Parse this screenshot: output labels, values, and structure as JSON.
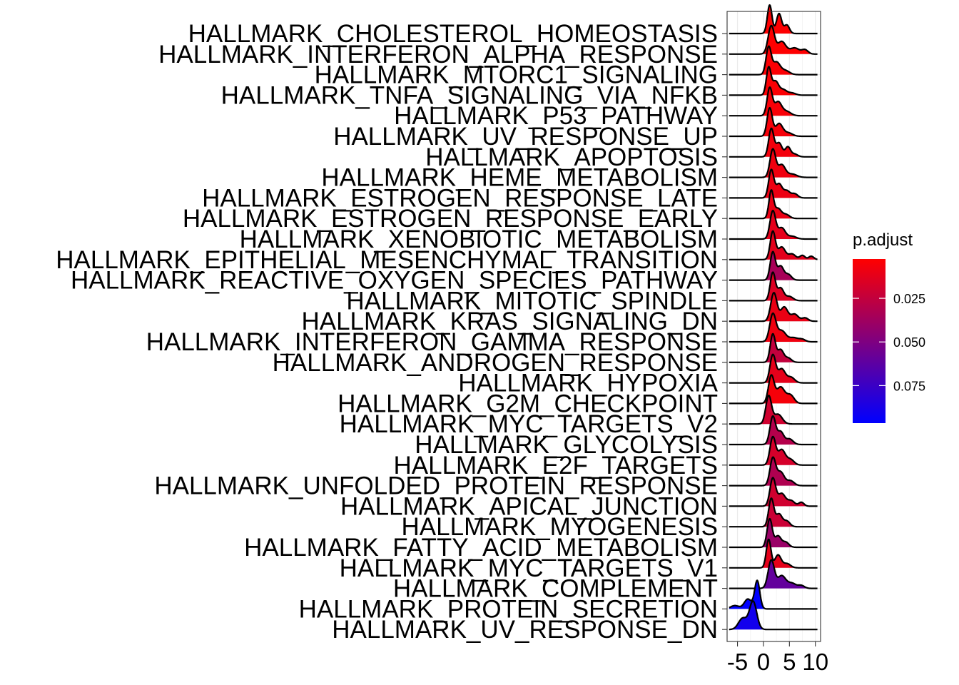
{
  "chart_data": {
    "type": "ridgeline",
    "xlim": [
      -7,
      11
    ],
    "x_ticks": [
      -5,
      0,
      5,
      10
    ],
    "x_tick_labels": [
      "-5",
      "0",
      "5",
      "10"
    ],
    "x_minor_ticks": [
      -2.5,
      2.5,
      7.5
    ],
    "grid": true,
    "legend": {
      "title": "p.adjust",
      "position": "right",
      "range": [
        0.0025,
        0.0965
      ],
      "ticks": [
        0.025,
        0.05,
        0.075
      ],
      "tick_labels": [
        "0.025",
        "0.050",
        "0.075"
      ],
      "colors": [
        "#FF0000",
        "#0000FF"
      ]
    },
    "series": [
      {
        "name": "HALLMARK_CHOLESTEROL_HOMEOSTASIS",
        "p_adjust": 0.003,
        "peaks": [
          [
            1.2,
            1.0,
            0.45
          ],
          [
            3.0,
            0.7,
            0.5
          ],
          [
            4.5,
            0.3,
            0.5
          ]
        ]
      },
      {
        "name": "HALLMARK_INTERFERON_ALPHA_RESPONSE",
        "p_adjust": 0.003,
        "peaks": [
          [
            1.5,
            1.0,
            0.6
          ],
          [
            3.5,
            0.45,
            0.8
          ],
          [
            6.0,
            0.22,
            0.9
          ],
          [
            8.0,
            0.15,
            0.6
          ]
        ]
      },
      {
        "name": "HALLMARK_MTORC1_SIGNALING",
        "p_adjust": 0.004,
        "peaks": [
          [
            1.0,
            1.0,
            0.5
          ],
          [
            2.5,
            0.45,
            0.7
          ],
          [
            4.2,
            0.15,
            0.8
          ]
        ]
      },
      {
        "name": "HALLMARK_TNFA_SIGNALING_VIA_NFKB",
        "p_adjust": 0.004,
        "peaks": [
          [
            1.0,
            1.0,
            0.45
          ],
          [
            2.3,
            0.5,
            0.6
          ],
          [
            3.8,
            0.2,
            0.7
          ],
          [
            5.5,
            0.08,
            0.7
          ]
        ]
      },
      {
        "name": "HALLMARK_P53_PATHWAY",
        "p_adjust": 0.005,
        "peaks": [
          [
            1.2,
            1.0,
            0.5
          ],
          [
            2.8,
            0.5,
            0.7
          ],
          [
            4.5,
            0.15,
            0.8
          ]
        ]
      },
      {
        "name": "HALLMARK_UV_RESPONSE_UP",
        "p_adjust": 0.006,
        "peaks": [
          [
            1.2,
            1.0,
            0.5
          ],
          [
            3.0,
            0.45,
            0.7
          ],
          [
            4.8,
            0.12,
            0.8
          ]
        ]
      },
      {
        "name": "HALLMARK_APOPTOSIS",
        "p_adjust": 0.007,
        "peaks": [
          [
            1.5,
            1.0,
            0.5
          ],
          [
            3.0,
            0.5,
            0.6
          ],
          [
            4.7,
            0.35,
            0.5
          ],
          [
            6.0,
            0.1,
            0.6
          ]
        ]
      },
      {
        "name": "HALLMARK_HEME_METABOLISM",
        "p_adjust": 0.008,
        "peaks": [
          [
            1.8,
            1.0,
            0.55
          ],
          [
            3.5,
            0.45,
            0.7
          ],
          [
            5.5,
            0.12,
            0.9
          ]
        ]
      },
      {
        "name": "HALLMARK_ESTROGEN_RESPONSE_LATE",
        "p_adjust": 0.009,
        "peaks": [
          [
            1.5,
            1.0,
            0.5
          ],
          [
            3.0,
            0.5,
            0.6
          ],
          [
            4.5,
            0.25,
            0.6
          ],
          [
            6.0,
            0.15,
            0.6
          ]
        ]
      },
      {
        "name": "HALLMARK_ESTROGEN_RESPONSE_EARLY",
        "p_adjust": 0.01,
        "peaks": [
          [
            1.5,
            1.0,
            0.45
          ],
          [
            2.8,
            0.35,
            0.6
          ],
          [
            4.3,
            0.15,
            0.7
          ]
        ]
      },
      {
        "name": "HALLMARK_XENOBIOTIC_METABOLISM",
        "p_adjust": 0.012,
        "peaks": [
          [
            1.8,
            1.0,
            0.55
          ],
          [
            3.5,
            0.4,
            0.7
          ],
          [
            5.5,
            0.1,
            0.8
          ]
        ]
      },
      {
        "name": "HALLMARK_EPITHELIAL_MESENCHYMAL_TRANSITION",
        "p_adjust": 0.013,
        "peaks": [
          [
            1.8,
            1.0,
            0.5
          ],
          [
            3.5,
            0.45,
            0.7
          ],
          [
            5.5,
            0.2,
            0.7
          ],
          [
            7.5,
            0.15,
            0.5
          ],
          [
            9.2,
            0.12,
            0.5
          ]
        ]
      },
      {
        "name": "HALLMARK_REACTIVE_OXYGEN_SPECIES_PATHWAY",
        "p_adjust": 0.035,
        "peaks": [
          [
            1.8,
            1.0,
            0.5
          ],
          [
            3.3,
            0.5,
            0.6
          ],
          [
            4.8,
            0.2,
            0.6
          ]
        ]
      },
      {
        "name": "HALLMARK_MITOTIC_SPINDLE",
        "p_adjust": 0.015,
        "peaks": [
          [
            1.8,
            1.0,
            0.5
          ],
          [
            3.3,
            0.45,
            0.6
          ],
          [
            5.0,
            0.15,
            0.7
          ]
        ]
      },
      {
        "name": "HALLMARK_KRAS_SIGNALING_DN",
        "p_adjust": 0.01,
        "peaks": [
          [
            2.0,
            1.0,
            0.6
          ],
          [
            4.0,
            0.5,
            0.7
          ],
          [
            6.0,
            0.25,
            0.7
          ],
          [
            8.0,
            0.12,
            0.6
          ]
        ]
      },
      {
        "name": "HALLMARK_INTERFERON_GAMMA_RESPONSE",
        "p_adjust": 0.008,
        "peaks": [
          [
            1.8,
            1.0,
            0.6
          ],
          [
            3.5,
            0.4,
            0.8
          ],
          [
            5.8,
            0.15,
            0.9
          ],
          [
            7.5,
            0.08,
            0.6
          ]
        ]
      },
      {
        "name": "HALLMARK_ANDROGEN_RESPONSE",
        "p_adjust": 0.025,
        "peaks": [
          [
            1.8,
            1.0,
            0.5
          ],
          [
            3.3,
            0.45,
            0.6
          ],
          [
            4.8,
            0.15,
            0.6
          ]
        ]
      },
      {
        "name": "HALLMARK_HYPOXIA",
        "p_adjust": 0.012,
        "peaks": [
          [
            1.8,
            1.0,
            0.55
          ],
          [
            3.5,
            0.5,
            0.7
          ],
          [
            5.3,
            0.2,
            0.7
          ]
        ]
      },
      {
        "name": "HALLMARK_G2M_CHECKPOINT",
        "p_adjust": 0.006,
        "peaks": [
          [
            1.5,
            1.0,
            0.55
          ],
          [
            3.3,
            0.6,
            0.8
          ],
          [
            5.2,
            0.3,
            0.7
          ]
        ]
      },
      {
        "name": "HALLMARK_MYC_TARGETS_V2",
        "p_adjust": 0.02,
        "peaks": [
          [
            1.0,
            1.0,
            0.55
          ],
          [
            2.8,
            0.35,
            0.8
          ]
        ]
      },
      {
        "name": "HALLMARK_GLYCOLYSIS",
        "p_adjust": 0.03,
        "peaks": [
          [
            1.8,
            1.0,
            0.55
          ],
          [
            3.3,
            0.45,
            0.6
          ],
          [
            5.0,
            0.2,
            0.7
          ]
        ]
      },
      {
        "name": "HALLMARK_E2F_TARGETS",
        "p_adjust": 0.018,
        "peaks": [
          [
            1.8,
            1.0,
            0.55
          ],
          [
            3.5,
            0.55,
            0.7
          ],
          [
            5.2,
            0.2,
            0.7
          ]
        ]
      },
      {
        "name": "HALLMARK_UNFOLDED_PROTEIN_RESPONSE",
        "p_adjust": 0.032,
        "peaks": [
          [
            1.8,
            1.0,
            0.55
          ],
          [
            3.3,
            0.5,
            0.7
          ],
          [
            5.2,
            0.18,
            0.7
          ]
        ]
      },
      {
        "name": "HALLMARK_APICAL_JUNCTION",
        "p_adjust": 0.02,
        "peaks": [
          [
            1.8,
            1.0,
            0.55
          ],
          [
            3.5,
            0.45,
            0.7
          ],
          [
            5.3,
            0.2,
            0.7
          ],
          [
            7.3,
            0.14,
            0.5
          ]
        ]
      },
      {
        "name": "HALLMARK_MYOGENESIS",
        "p_adjust": 0.022,
        "peaks": [
          [
            1.5,
            1.0,
            0.5
          ],
          [
            3.0,
            0.45,
            0.6
          ],
          [
            4.5,
            0.2,
            0.6
          ]
        ]
      },
      {
        "name": "HALLMARK_FATTY_ACID_METABOLISM",
        "p_adjust": 0.04,
        "peaks": [
          [
            1.2,
            1.0,
            0.5
          ],
          [
            2.8,
            0.4,
            0.6
          ],
          [
            4.3,
            0.18,
            0.6
          ]
        ]
      },
      {
        "name": "HALLMARK_MYC_TARGETS_V1",
        "p_adjust": 0.012,
        "peaks": [
          [
            1.0,
            1.0,
            0.45
          ],
          [
            2.8,
            0.45,
            0.6
          ],
          [
            4.5,
            0.15,
            0.7
          ]
        ]
      },
      {
        "name": "HALLMARK_COMPLEMENT",
        "p_adjust": 0.06,
        "peaks": [
          [
            1.5,
            1.0,
            0.6
          ],
          [
            3.5,
            0.45,
            0.8
          ],
          [
            5.5,
            0.18,
            0.8
          ],
          [
            7.3,
            0.1,
            0.6
          ]
        ]
      },
      {
        "name": "HALLMARK_PROTEIN_SECRETION",
        "p_adjust": 0.0965,
        "peaks": [
          [
            -1.2,
            1.0,
            0.5
          ],
          [
            -3.0,
            0.35,
            0.7
          ],
          [
            -5.5,
            0.12,
            0.8
          ]
        ]
      },
      {
        "name": "HALLMARK_UV_RESPONSE_DN",
        "p_adjust": 0.09,
        "peaks": [
          [
            -2.0,
            1.0,
            0.7
          ],
          [
            -4.0,
            0.4,
            0.8
          ]
        ]
      }
    ]
  }
}
